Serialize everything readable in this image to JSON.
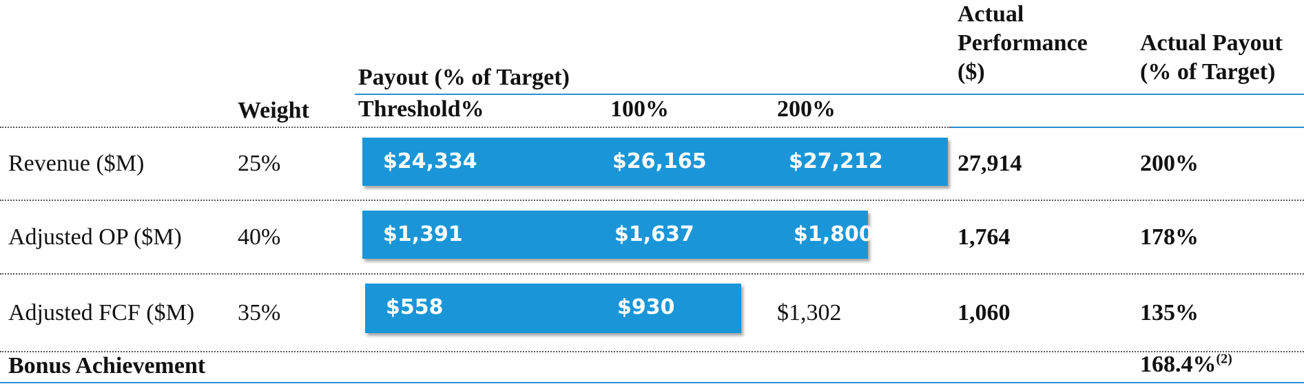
{
  "colors": {
    "bar": "#1a96d8",
    "rule_blue": "#2a8fd0",
    "text": "#111111"
  },
  "header": {
    "weight": "Weight",
    "payout_group": "Payout (% of Target)",
    "threshold": "Threshold%",
    "target": "100%",
    "max": "200%",
    "actual_performance_line1": "Actual",
    "actual_performance_line2": "Performance",
    "actual_performance_line3": "($)",
    "actual_payout_line1": "Actual Payout",
    "actual_payout_line2": "(% of Target)"
  },
  "rows": [
    {
      "metric": "Revenue ($M)",
      "weight": "25%",
      "threshold": "$24,334",
      "target": "$26,165",
      "max": "$27,212",
      "actual": "27,914",
      "payout": "200%"
    },
    {
      "metric": "Adjusted OP ($M)",
      "weight": "40%",
      "threshold": "$1,391",
      "target": "$1,637",
      "max": "$1,800",
      "actual": "1,764",
      "payout": "178%"
    },
    {
      "metric": "Adjusted FCF ($M)",
      "weight": "35%",
      "threshold": "$558",
      "target": "$930",
      "max": "$1,302",
      "actual": "1,060",
      "payout": "135%"
    }
  ],
  "summary": {
    "label": "Bonus Achievement",
    "value": "168.4%",
    "footnote": "(2)"
  }
}
